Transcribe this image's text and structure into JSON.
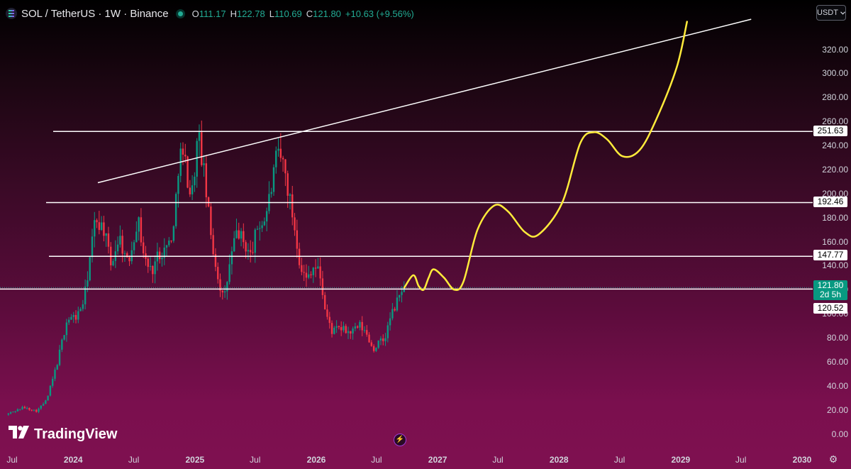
{
  "header": {
    "title": "SOL / TetherUS · 1W · Binance",
    "symbol_icon": "solana-icon",
    "ohlc": {
      "o_label": "O",
      "o_value": "111.17",
      "h_label": "H",
      "h_value": "122.78",
      "l_label": "L",
      "l_value": "110.69",
      "c_label": "C",
      "c_value": "121.80",
      "change": "+10.63 (+9.56%)"
    }
  },
  "currency_selector": {
    "label": "USDT",
    "icon": "chevron-down-icon"
  },
  "price_tags": {
    "current_price": "121.80",
    "countdown": "2d 5h",
    "level_251": "251.63",
    "level_192": "192.46",
    "level_147": "147.77",
    "level_120": "120.52"
  },
  "logo": {
    "text": "TradingView",
    "icon": "tradingview-logo-icon"
  },
  "settings_icon": "gear-icon",
  "flash_icon": "lightning-icon",
  "colors": {
    "up": "#089981",
    "down": "#f23645",
    "levels": "#ffffff",
    "projection": "#ffeb3b",
    "trendline": "#ffffff"
  },
  "chart_data": {
    "type": "candlestick",
    "title": "SOL / TetherUS · 1W · Binance",
    "y_axis": {
      "ticks": [
        "0.00",
        "20.00",
        "40.00",
        "60.00",
        "80.00",
        "100.00",
        "120.00",
        "140.00",
        "160.00",
        "180.00",
        "200.00",
        "220.00",
        "240.00",
        "260.00",
        "280.00",
        "300.00",
        "320.00"
      ],
      "range": [
        0,
        340
      ],
      "position": "right"
    },
    "x_axis": {
      "ticks": [
        {
          "label": "Jul",
          "date": "2023-07-01"
        },
        {
          "label": "2024",
          "date": "2024-01-01",
          "bold": true
        },
        {
          "label": "Jul",
          "date": "2024-07-01"
        },
        {
          "label": "2025",
          "date": "2025-01-01",
          "bold": true
        },
        {
          "label": "Jul",
          "date": "2025-07-01"
        },
        {
          "label": "2026",
          "date": "2026-01-01",
          "bold": true
        },
        {
          "label": "Jul",
          "date": "2026-07-01"
        },
        {
          "label": "2027",
          "date": "2027-01-01",
          "bold": true
        },
        {
          "label": "Jul",
          "date": "2027-07-01"
        },
        {
          "label": "2028",
          "date": "2028-01-01",
          "bold": true
        },
        {
          "label": "Jul",
          "date": "2028-07-01"
        },
        {
          "label": "2029",
          "date": "2029-01-01",
          "bold": true
        },
        {
          "label": "Jul",
          "date": "2029-07-01"
        },
        {
          "label": "2030",
          "date": "2030-01-01",
          "bold": true
        }
      ]
    },
    "price_path": [
      [
        "2023-06-20",
        16
      ],
      [
        "2023-08-10",
        22
      ],
      [
        "2023-09-20",
        19
      ],
      [
        "2023-10-20",
        28
      ],
      [
        "2023-11-20",
        58
      ],
      [
        "2023-12-20",
        95
      ],
      [
        "2024-01-20",
        98
      ],
      [
        "2024-02-10",
        112
      ],
      [
        "2024-03-15",
        180
      ],
      [
        "2024-04-10",
        170
      ],
      [
        "2024-04-30",
        140
      ],
      [
        "2024-05-25",
        165
      ],
      [
        "2024-06-20",
        140
      ],
      [
        "2024-07-20",
        180
      ],
      [
        "2024-08-10",
        145
      ],
      [
        "2024-08-30",
        135
      ],
      [
        "2024-09-20",
        150
      ],
      [
        "2024-10-15",
        155
      ],
      [
        "2024-11-05",
        170
      ],
      [
        "2024-11-22",
        235
      ],
      [
        "2024-12-10",
        225
      ],
      [
        "2024-12-28",
        195
      ],
      [
        "2025-01-18",
        250
      ],
      [
        "2025-02-05",
        215
      ],
      [
        "2025-02-25",
        165
      ],
      [
        "2025-03-15",
        135
      ],
      [
        "2025-04-05",
        110
      ],
      [
        "2025-04-25",
        145
      ],
      [
        "2025-05-15",
        170
      ],
      [
        "2025-06-05",
        158
      ],
      [
        "2025-06-25",
        148
      ],
      [
        "2025-07-15",
        172
      ],
      [
        "2025-08-05",
        178
      ],
      [
        "2025-08-25",
        203
      ],
      [
        "2025-09-12",
        232
      ],
      [
        "2025-10-01",
        225
      ],
      [
        "2025-10-20",
        195
      ],
      [
        "2025-11-05",
        170
      ],
      [
        "2025-11-20",
        142
      ],
      [
        "2025-12-08",
        128
      ],
      [
        "2025-12-28",
        140
      ],
      [
        "2026-01-18",
        135
      ],
      [
        "2026-02-05",
        100
      ],
      [
        "2026-02-25",
        85
      ],
      [
        "2026-03-20",
        88
      ],
      [
        "2026-04-20",
        84
      ],
      [
        "2026-05-20",
        90
      ],
      [
        "2026-06-10",
        82
      ],
      [
        "2026-06-28",
        70
      ],
      [
        "2026-07-15",
        76
      ],
      [
        "2026-08-01",
        78
      ],
      [
        "2026-08-20",
        98
      ],
      [
        "2026-09-10",
        111
      ],
      [
        "2026-09-23",
        121.8
      ]
    ],
    "horizontal_levels": [
      251.63,
      192.46,
      147.77,
      120.52
    ],
    "current_price": 121.8,
    "trendline": {
      "start": {
        "date": "2024-03-15",
        "price": 209
      },
      "end": {
        "date": "2029-08-01",
        "price": 345
      }
    },
    "projection_path": [
      [
        "2026-09-23",
        121.8
      ],
      [
        "2026-10-20",
        132
      ],
      [
        "2026-11-05",
        123
      ],
      [
        "2026-11-20",
        120
      ],
      [
        "2026-12-05",
        130
      ],
      [
        "2026-12-20",
        137
      ],
      [
        "2027-01-20",
        130
      ],
      [
        "2027-02-20",
        120
      ],
      [
        "2027-03-20",
        127
      ],
      [
        "2027-05-01",
        170
      ],
      [
        "2027-06-20",
        190
      ],
      [
        "2027-08-01",
        185
      ],
      [
        "2027-09-20",
        168
      ],
      [
        "2027-11-01",
        166
      ],
      [
        "2028-01-10",
        192
      ],
      [
        "2028-03-05",
        242
      ],
      [
        "2028-04-15",
        251
      ],
      [
        "2028-05-25",
        245
      ],
      [
        "2028-07-10",
        231
      ],
      [
        "2028-08-30",
        236
      ],
      [
        "2028-10-20",
        262
      ],
      [
        "2028-12-20",
        305
      ],
      [
        "2029-01-20",
        343
      ]
    ]
  }
}
